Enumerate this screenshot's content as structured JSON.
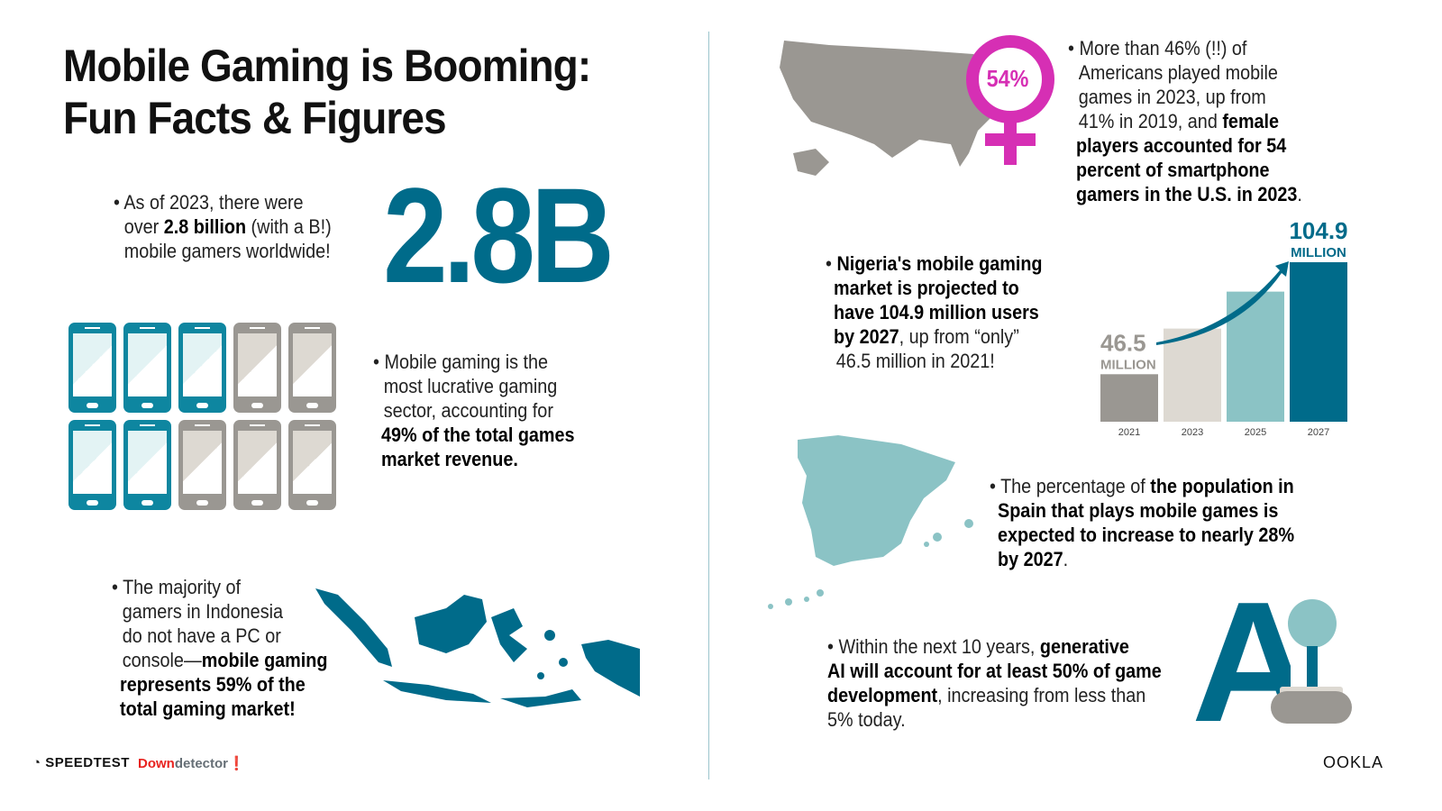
{
  "title_line1": "Mobile Gaming is Booming:",
  "title_line2": "Fun Facts & Figures",
  "fact_gamers": {
    "pre": "As of 2023, there were",
    "mid_pre": "over ",
    "bold": "2.8 billion",
    "mid_post": " (with a B!)",
    "post": "mobile gamers worldwide!"
  },
  "big_number": "2.8B",
  "phones": {
    "highlighted": 5,
    "total": 10,
    "colors": {
      "highlight": "#0e86a0",
      "other": "#9a9792"
    }
  },
  "fact_revenue": {
    "l1": "Mobile gaming is the",
    "l2": "most lucrative gaming",
    "l3": "sector, accounting for",
    "b1": "49% of the total games",
    "b2": "market revenue."
  },
  "fact_indonesia": {
    "l1": "The majority of",
    "l2": "gamers in Indonesia",
    "l3": "do not have a PC or",
    "l4pre": "console—",
    "b1": "mobile gaming",
    "b2": "represents 59% of the",
    "b3": "total gaming market!"
  },
  "female_badge": "54%",
  "fact_us": {
    "l1": "More than 46% (!!) of",
    "l2": "Americans played mobile",
    "l3": "games in 2023, up from",
    "l4pre": "41% in 2019, and ",
    "b1": "female",
    "b2": "players accounted for 54",
    "b3": "percent of smartphone",
    "b4": "gamers in the U.S. in 2023",
    "end": "."
  },
  "fact_nigeria": {
    "b1": "Nigeria's mobile gaming",
    "b2": "market is projected to",
    "b3": "have 104.9 million users",
    "b4": "by 2027",
    "l4post": ", up from “only”",
    "l5": "46.5 million in 2021!"
  },
  "chart_data": {
    "type": "bar",
    "categories": [
      "2021",
      "2023",
      "2025",
      "2027"
    ],
    "values": [
      46.5,
      68.6,
      86.5,
      104.9
    ],
    "ylim": [
      23.5,
      110
    ],
    "data_labels": [
      {
        "value": "46.5",
        "unit": "MILLION"
      },
      null,
      null,
      {
        "value": "104.9",
        "unit": "MILLION"
      }
    ],
    "colors": [
      "#9a9792",
      "#ddd9d2",
      "#8bc3c5",
      "#006b8a"
    ],
    "grid": false
  },
  "fact_spain": {
    "pre": "The percentage of ",
    "b1": "the population in",
    "b2": "Spain that plays mobile games is",
    "b3": "expected to increase to nearly 28%",
    "b4": "by 2027",
    "end": "."
  },
  "fact_ai": {
    "pre": "Within the next 10 years, ",
    "b1": "generative",
    "b2": "AI will account for at least 50% of game",
    "b3": "development",
    "post": ", increasing from less than",
    "l4": "5% today."
  },
  "ai_graphic": "AI",
  "footer": {
    "speedtest": "SPEEDTEST",
    "down_red": "Down",
    "down_gray": "detector",
    "ookla": "OOKLA"
  },
  "colors": {
    "teal": "#006b8a",
    "light_teal": "#8bc3c5",
    "gray": "#9a9792",
    "magenta": "#d62fb4"
  }
}
